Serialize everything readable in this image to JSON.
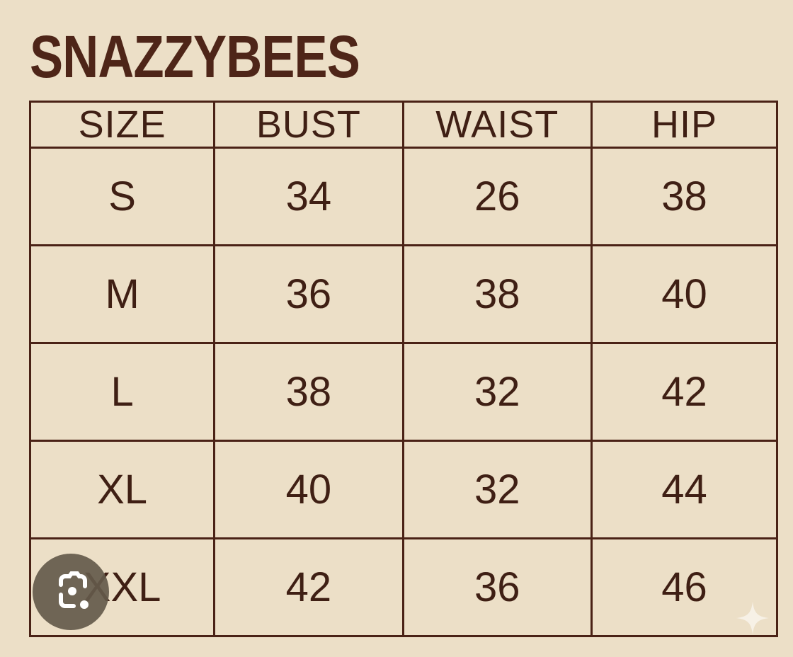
{
  "brand": "SNAZZYBEES",
  "table": {
    "headers": [
      "SIZE",
      "BUST",
      "WAIST",
      "HIP"
    ],
    "rows": [
      [
        "S",
        "34",
        "26",
        "38"
      ],
      [
        "M",
        "36",
        "38",
        "40"
      ],
      [
        "L",
        "38",
        "32",
        "42"
      ],
      [
        "XL",
        "40",
        "32",
        "44"
      ],
      [
        "XXL",
        "42",
        "36",
        "46"
      ]
    ]
  },
  "overlays": {
    "lens_icon": "google-lens-icon",
    "sparkle_icon": "sparkle-icon"
  },
  "colors": {
    "background": "#ecdfc7",
    "text": "#4a2216"
  }
}
